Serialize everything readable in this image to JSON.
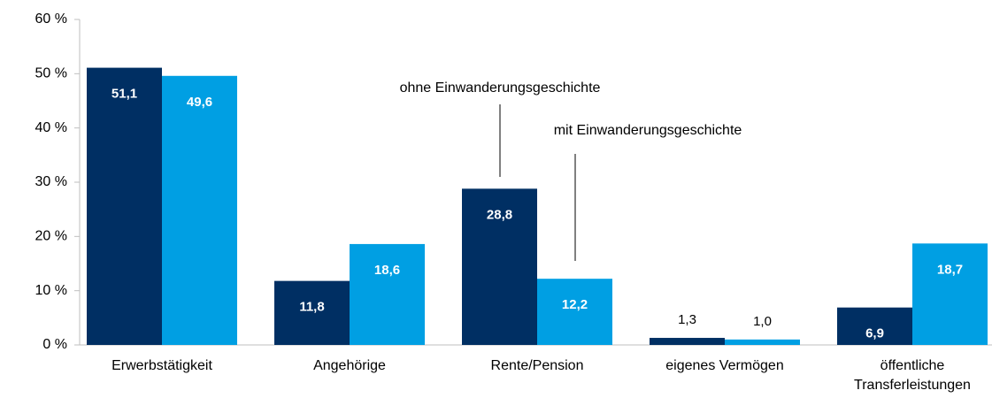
{
  "chart_data": {
    "type": "bar",
    "categories": [
      "Erwerbstätigkeit",
      "Angehörige",
      "Rente/Pension",
      "eigenes Vermögen",
      "öffentliche Transferleistungen"
    ],
    "series": [
      {
        "name": "ohne Einwanderungsgeschichte",
        "color": "#002f63",
        "values": [
          51.1,
          11.8,
          28.8,
          1.3,
          6.9
        ],
        "value_labels": [
          "51,1",
          "11,8",
          "28,8",
          "1,3",
          "6,9"
        ]
      },
      {
        "name": "mit Einwanderungsgeschichte",
        "color": "#009fe3",
        "values": [
          49.6,
          18.6,
          12.2,
          1.0,
          18.7
        ],
        "value_labels": [
          "49,6",
          "18,6",
          "12,2",
          "1,0",
          "18,7"
        ]
      }
    ],
    "ylim": [
      0,
      60
    ],
    "yticks": [
      {
        "value": 0,
        "label": "0 %"
      },
      {
        "value": 10,
        "label": "10 %"
      },
      {
        "value": 20,
        "label": "20 %"
      },
      {
        "value": 30,
        "label": "30 %"
      },
      {
        "value": 40,
        "label": "40 %"
      },
      {
        "value": 50,
        "label": "50 %"
      },
      {
        "value": 60,
        "label": "60 %"
      }
    ],
    "grid": false
  }
}
